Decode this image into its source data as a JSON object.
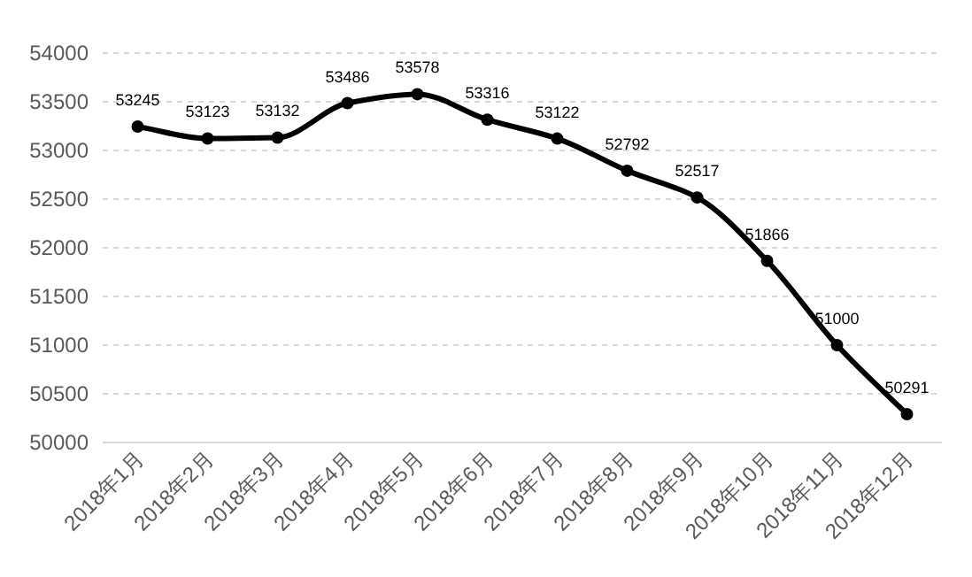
{
  "chart_data": {
    "type": "line",
    "categories": [
      "2018年1月",
      "2018年2月",
      "2018年3月",
      "2018年4月",
      "2018年5月",
      "2018年6月",
      "2018年7月",
      "2018年8月",
      "2018年9月",
      "2018年10月",
      "2018年11月",
      "2018年12月"
    ],
    "series": [
      {
        "color": "#000000",
        "values": [
          53245,
          53123,
          53132,
          53486,
          53578,
          53316,
          53122,
          52792,
          52517,
          51866,
          51000,
          50291
        ]
      }
    ],
    "ylim": [
      50000,
      54000
    ],
    "yticks": [
      50000,
      50500,
      51000,
      51500,
      52000,
      52500,
      53000,
      53500,
      54000
    ],
    "grid": "y",
    "marker": "circle",
    "line_style": "solid",
    "data_labels": true
  }
}
